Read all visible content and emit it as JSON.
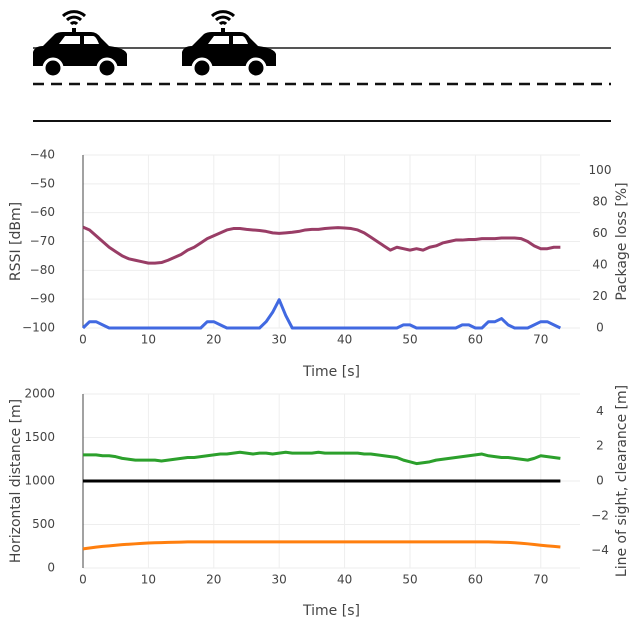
{
  "chart_data": [
    {
      "type": "line",
      "xlabel": "Time [s]",
      "ylabel": "RSSI [dBm]",
      "y2label": "Package loss [%]",
      "xlim": [
        0,
        76
      ],
      "xticks": [
        0,
        10,
        20,
        30,
        40,
        50,
        60,
        70
      ],
      "ylim": [
        -100,
        -40
      ],
      "yticks": [
        {
          "value": -100,
          "label": "−100"
        },
        {
          "value": -90,
          "label": "−90"
        },
        {
          "value": -80,
          "label": "−80"
        },
        {
          "value": -70,
          "label": "−70"
        },
        {
          "value": -60,
          "label": "−60"
        },
        {
          "value": -50,
          "label": "−50"
        },
        {
          "value": -40,
          "label": "−40"
        }
      ],
      "y2lim": [
        0,
        110
      ],
      "y2ticks": [
        0,
        20,
        40,
        60,
        80,
        100
      ],
      "grid": true,
      "x": [
        0,
        1,
        2,
        3,
        4,
        5,
        6,
        7,
        8,
        9,
        10,
        11,
        12,
        13,
        14,
        15,
        16,
        17,
        18,
        19,
        20,
        21,
        22,
        23,
        24,
        25,
        26,
        27,
        28,
        29,
        30,
        31,
        32,
        33,
        34,
        35,
        36,
        37,
        38,
        39,
        40,
        41,
        42,
        43,
        44,
        45,
        46,
        47,
        48,
        49,
        50,
        51,
        52,
        53,
        54,
        55,
        56,
        57,
        58,
        59,
        60,
        61,
        62,
        63,
        64,
        65,
        66,
        67,
        68,
        69,
        70,
        71,
        72,
        73
      ],
      "series": [
        {
          "color": "#993d66",
          "values": [
            -65,
            -66,
            -68,
            -70,
            -72,
            -73.5,
            -75,
            -76,
            -76.5,
            -77,
            -77.5,
            -77.5,
            -77.3,
            -76.5,
            -75.5,
            -74.5,
            -73,
            -72,
            -70.5,
            -69,
            -68,
            -67,
            -66,
            -65.5,
            -65.5,
            -65.8,
            -66,
            -66.2,
            -66.5,
            -67,
            -67.2,
            -67,
            -66.8,
            -66.5,
            -66,
            -65.8,
            -65.8,
            -65.5,
            -65.3,
            -65.2,
            -65.3,
            -65.5,
            -66,
            -67,
            -68.5,
            -70,
            -71.5,
            -73,
            -72,
            -72.5,
            -73,
            -72.5,
            -73,
            -72,
            -71.5,
            -70.5,
            -70,
            -69.5,
            -69.5,
            -69.3,
            -69.3,
            -69,
            -69,
            -69,
            -68.8,
            -68.8,
            -68.8,
            -69,
            -70,
            -71.5,
            -72.5,
            -72.5,
            -72,
            -72
          ]
        },
        {
          "color": "#4169e1",
          "axis": "y2",
          "values": [
            0,
            4,
            4,
            2,
            0,
            0,
            0,
            0,
            0,
            0,
            0,
            0,
            0,
            0,
            0,
            0,
            0,
            0,
            0,
            4,
            4,
            2,
            0,
            0,
            0,
            0,
            0,
            0,
            4,
            10,
            18,
            8,
            0,
            0,
            0,
            0,
            0,
            0,
            0,
            0,
            0,
            0,
            0,
            0,
            0,
            0,
            0,
            0,
            0,
            2,
            2,
            0,
            0,
            0,
            0,
            0,
            0,
            0,
            2,
            2,
            0,
            0,
            4,
            4,
            6,
            2,
            0,
            0,
            0,
            2,
            4,
            4,
            2,
            0
          ]
        }
      ]
    },
    {
      "type": "line",
      "xlabel": "Time [s]",
      "ylabel": "Horizontal distance [m]",
      "y2label": "Line of sight, clearance [m]",
      "xlim": [
        0,
        76
      ],
      "xticks": [
        0,
        10,
        20,
        30,
        40,
        50,
        60,
        70
      ],
      "ylim": [
        0,
        2000
      ],
      "yticks": [
        0,
        500,
        1000,
        1500,
        2000
      ],
      "y2lim": [
        -5,
        5
      ],
      "y2ticks": [
        {
          "value": -4,
          "label": "−4"
        },
        {
          "value": -2,
          "label": "−2"
        },
        0,
        2,
        4
      ],
      "grid": true,
      "x": [
        0,
        1,
        2,
        3,
        4,
        5,
        6,
        7,
        8,
        9,
        10,
        11,
        12,
        13,
        14,
        15,
        16,
        17,
        18,
        19,
        20,
        21,
        22,
        23,
        24,
        25,
        26,
        27,
        28,
        29,
        30,
        31,
        32,
        33,
        34,
        35,
        36,
        37,
        38,
        39,
        40,
        41,
        42,
        43,
        44,
        45,
        46,
        47,
        48,
        49,
        50,
        51,
        52,
        53,
        54,
        55,
        56,
        57,
        58,
        59,
        60,
        61,
        62,
        63,
        64,
        65,
        66,
        67,
        68,
        69,
        70,
        71,
        72,
        73
      ],
      "series": [
        {
          "color": "#ff7f0e",
          "values": [
            220,
            230,
            240,
            248,
            255,
            262,
            268,
            273,
            278,
            283,
            287,
            290,
            292,
            294,
            296,
            298,
            300,
            300,
            300,
            300,
            300,
            300,
            300,
            300,
            300,
            300,
            300,
            300,
            300,
            300,
            300,
            300,
            300,
            300,
            300,
            300,
            300,
            300,
            300,
            300,
            300,
            300,
            300,
            300,
            300,
            300,
            300,
            300,
            300,
            300,
            300,
            300,
            300,
            300,
            300,
            300,
            300,
            300,
            300,
            300,
            300,
            300,
            300,
            298,
            296,
            294,
            290,
            285,
            278,
            270,
            262,
            255,
            248,
            242
          ]
        },
        {
          "color": "#2ca02c",
          "axis": "y2",
          "values": [
            1.5,
            1.5,
            1.5,
            1.45,
            1.45,
            1.4,
            1.3,
            1.25,
            1.2,
            1.2,
            1.2,
            1.2,
            1.15,
            1.2,
            1.25,
            1.3,
            1.35,
            1.35,
            1.4,
            1.45,
            1.5,
            1.55,
            1.55,
            1.6,
            1.65,
            1.6,
            1.55,
            1.6,
            1.6,
            1.55,
            1.6,
            1.65,
            1.6,
            1.6,
            1.6,
            1.6,
            1.65,
            1.6,
            1.6,
            1.6,
            1.6,
            1.6,
            1.6,
            1.55,
            1.55,
            1.5,
            1.45,
            1.4,
            1.35,
            1.2,
            1.1,
            1.0,
            1.05,
            1.1,
            1.2,
            1.25,
            1.3,
            1.35,
            1.4,
            1.45,
            1.5,
            1.55,
            1.45,
            1.4,
            1.35,
            1.35,
            1.3,
            1.25,
            1.2,
            1.3,
            1.45,
            1.4,
            1.35,
            1.3
          ]
        },
        {
          "color": "#000000",
          "axis": "y2",
          "values": [
            0,
            0,
            0,
            0,
            0,
            0,
            0,
            0,
            0,
            0,
            0,
            0,
            0,
            0,
            0,
            0,
            0,
            0,
            0,
            0,
            0,
            0,
            0,
            0,
            0,
            0,
            0,
            0,
            0,
            0,
            0,
            0,
            0,
            0,
            0,
            0,
            0,
            0,
            0,
            0,
            0,
            0,
            0,
            0,
            0,
            0,
            0,
            0,
            0,
            0,
            0,
            0,
            0,
            0,
            0,
            0,
            0,
            0,
            0,
            0,
            0,
            0,
            0,
            0,
            0,
            0,
            0,
            0,
            0,
            0,
            0,
            0,
            0,
            0
          ]
        }
      ]
    }
  ]
}
